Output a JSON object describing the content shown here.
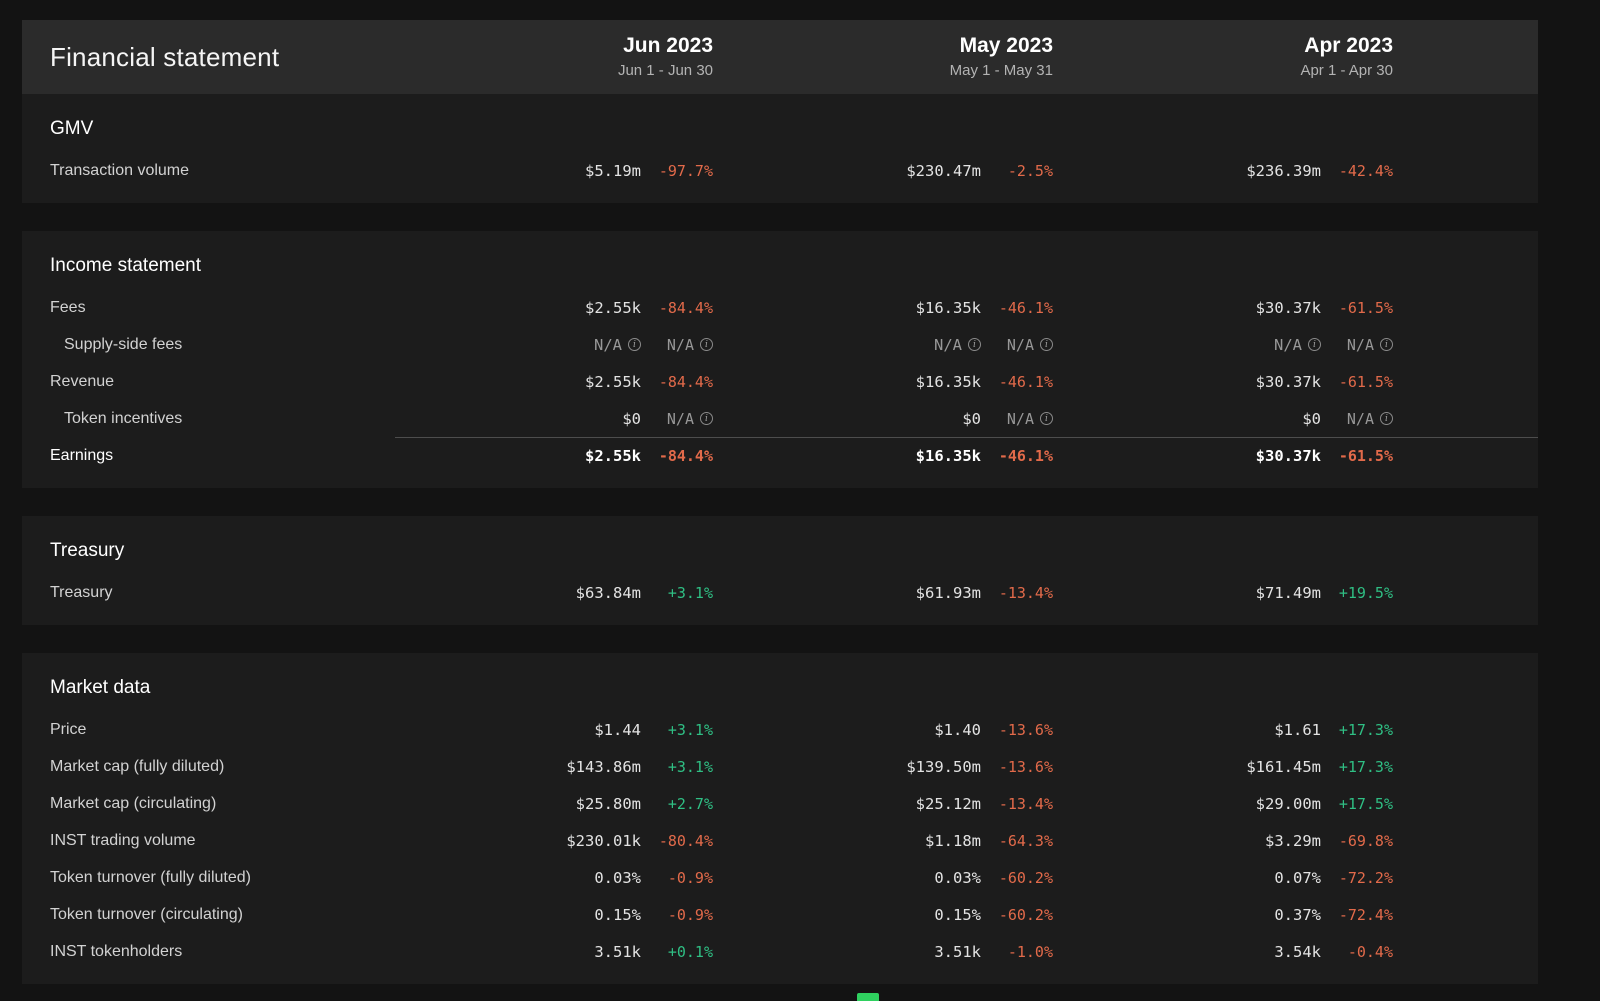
{
  "title": "Financial statement",
  "columns": [
    {
      "month": "Jun 2023",
      "range": "Jun 1 - Jun 30"
    },
    {
      "month": "May 2023",
      "range": "May 1 - May 31"
    },
    {
      "month": "Apr 2023",
      "range": "Apr 1 - Apr 30"
    }
  ],
  "colors": {
    "negative": "#e26a4a",
    "positive": "#2fbf84",
    "neutral": "#979797",
    "header_bg": "#2b2b2b",
    "section_bg": "#1c1c1c",
    "page_bg": "#131313",
    "green_sliver": "#2fd05f"
  },
  "sections": [
    {
      "title": "GMV",
      "rows": [
        {
          "label": "Transaction volume",
          "cells": [
            {
              "value": "$5.19m",
              "pct": "-97.7%",
              "trend": "negative"
            },
            {
              "value": "$230.47m",
              "pct": "-2.5%",
              "trend": "negative"
            },
            {
              "value": "$236.39m",
              "pct": "-42.4%",
              "trend": "negative"
            }
          ]
        }
      ]
    },
    {
      "title": "Income statement",
      "rows": [
        {
          "label": "Fees",
          "cells": [
            {
              "value": "$2.55k",
              "pct": "-84.4%",
              "trend": "negative"
            },
            {
              "value": "$16.35k",
              "pct": "-46.1%",
              "trend": "negative"
            },
            {
              "value": "$30.37k",
              "pct": "-61.5%",
              "trend": "negative"
            }
          ]
        },
        {
          "label": "Supply-side fees",
          "indent": true,
          "cells": [
            {
              "value": "N/A",
              "muted": true,
              "value_info": true,
              "pct": "N/A",
              "pct_info": true,
              "trend": "neutral"
            },
            {
              "value": "N/A",
              "muted": true,
              "value_info": true,
              "pct": "N/A",
              "pct_info": true,
              "trend": "neutral"
            },
            {
              "value": "N/A",
              "muted": true,
              "value_info": true,
              "pct": "N/A",
              "pct_info": true,
              "trend": "neutral"
            }
          ]
        },
        {
          "label": "Revenue",
          "cells": [
            {
              "value": "$2.55k",
              "pct": "-84.4%",
              "trend": "negative"
            },
            {
              "value": "$16.35k",
              "pct": "-46.1%",
              "trend": "negative"
            },
            {
              "value": "$30.37k",
              "pct": "-61.5%",
              "trend": "negative"
            }
          ]
        },
        {
          "label": "Token incentives",
          "indent": true,
          "cells": [
            {
              "value": "$0",
              "pct": "N/A",
              "pct_info": true,
              "trend": "neutral"
            },
            {
              "value": "$0",
              "pct": "N/A",
              "pct_info": true,
              "trend": "neutral"
            },
            {
              "value": "$0",
              "pct": "N/A",
              "pct_info": true,
              "trend": "neutral"
            }
          ]
        },
        {
          "label": "Earnings",
          "emphasis": true,
          "divider": true,
          "cells": [
            {
              "value": "$2.55k",
              "pct": "-84.4%",
              "trend": "negative"
            },
            {
              "value": "$16.35k",
              "pct": "-46.1%",
              "trend": "negative"
            },
            {
              "value": "$30.37k",
              "pct": "-61.5%",
              "trend": "negative"
            }
          ]
        }
      ]
    },
    {
      "title": "Treasury",
      "rows": [
        {
          "label": "Treasury",
          "cells": [
            {
              "value": "$63.84m",
              "pct": "+3.1%",
              "trend": "positive"
            },
            {
              "value": "$61.93m",
              "pct": "-13.4%",
              "trend": "negative"
            },
            {
              "value": "$71.49m",
              "pct": "+19.5%",
              "trend": "positive"
            }
          ]
        }
      ]
    },
    {
      "title": "Market data",
      "rows": [
        {
          "label": "Price",
          "cells": [
            {
              "value": "$1.44",
              "pct": "+3.1%",
              "trend": "positive"
            },
            {
              "value": "$1.40",
              "pct": "-13.6%",
              "trend": "negative"
            },
            {
              "value": "$1.61",
              "pct": "+17.3%",
              "trend": "positive"
            }
          ]
        },
        {
          "label": "Market cap (fully diluted)",
          "cells": [
            {
              "value": "$143.86m",
              "pct": "+3.1%",
              "trend": "positive"
            },
            {
              "value": "$139.50m",
              "pct": "-13.6%",
              "trend": "negative"
            },
            {
              "value": "$161.45m",
              "pct": "+17.3%",
              "trend": "positive"
            }
          ]
        },
        {
          "label": "Market cap (circulating)",
          "cells": [
            {
              "value": "$25.80m",
              "pct": "+2.7%",
              "trend": "positive"
            },
            {
              "value": "$25.12m",
              "pct": "-13.4%",
              "trend": "negative"
            },
            {
              "value": "$29.00m",
              "pct": "+17.5%",
              "trend": "positive"
            }
          ]
        },
        {
          "label": "INST trading volume",
          "cells": [
            {
              "value": "$230.01k",
              "pct": "-80.4%",
              "trend": "negative"
            },
            {
              "value": "$1.18m",
              "pct": "-64.3%",
              "trend": "negative"
            },
            {
              "value": "$3.29m",
              "pct": "-69.8%",
              "trend": "negative"
            }
          ]
        },
        {
          "label": "Token turnover (fully diluted)",
          "cells": [
            {
              "value": "0.03%",
              "pct": "-0.9%",
              "trend": "negative"
            },
            {
              "value": "0.03%",
              "pct": "-60.2%",
              "trend": "negative"
            },
            {
              "value": "0.07%",
              "pct": "-72.2%",
              "trend": "negative"
            }
          ]
        },
        {
          "label": "Token turnover (circulating)",
          "cells": [
            {
              "value": "0.15%",
              "pct": "-0.9%",
              "trend": "negative"
            },
            {
              "value": "0.15%",
              "pct": "-60.2%",
              "trend": "negative"
            },
            {
              "value": "0.37%",
              "pct": "-72.4%",
              "trend": "negative"
            }
          ]
        },
        {
          "label": "INST tokenholders",
          "cells": [
            {
              "value": "3.51k",
              "pct": "+0.1%",
              "trend": "positive"
            },
            {
              "value": "3.51k",
              "pct": "-1.0%",
              "trend": "negative"
            },
            {
              "value": "3.54k",
              "pct": "-0.4%",
              "trend": "negative"
            }
          ]
        }
      ]
    }
  ]
}
